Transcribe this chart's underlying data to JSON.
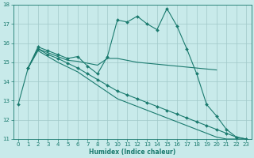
{
  "xlabel": "Humidex (Indice chaleur)",
  "bg_color": "#c8eaea",
  "grid_color": "#a0c8c8",
  "line_color": "#1a7a6e",
  "xlim": [
    -0.5,
    23.5
  ],
  "ylim": [
    11,
    18
  ],
  "yticks": [
    11,
    12,
    13,
    14,
    15,
    16,
    17,
    18
  ],
  "xticks": [
    0,
    1,
    2,
    3,
    4,
    5,
    6,
    7,
    8,
    9,
    10,
    11,
    12,
    13,
    14,
    15,
    16,
    17,
    18,
    19,
    20,
    21,
    22,
    23
  ],
  "curve1_x": [
    0,
    1,
    2,
    3,
    4,
    5,
    6,
    7,
    8,
    9,
    10,
    11,
    12,
    13,
    14,
    15,
    16,
    17,
    18,
    19,
    20,
    21,
    22,
    23
  ],
  "curve1_y": [
    12.8,
    14.7,
    15.8,
    15.6,
    15.4,
    15.2,
    15.3,
    14.8,
    14.4,
    15.3,
    17.2,
    17.1,
    17.4,
    17.0,
    16.7,
    17.8,
    16.9,
    15.7,
    14.4,
    12.8,
    12.2,
    11.5,
    11.1,
    11.0
  ],
  "curve2_x": [
    1,
    2,
    3,
    4,
    5,
    6,
    7,
    8,
    9,
    10,
    11,
    12,
    13,
    14,
    15,
    16,
    17,
    18,
    19,
    20
  ],
  "curve2_y": [
    14.7,
    15.7,
    15.5,
    15.3,
    15.1,
    15.05,
    14.95,
    14.85,
    15.2,
    15.2,
    15.1,
    15.0,
    14.95,
    14.9,
    14.85,
    14.8,
    14.75,
    14.7,
    14.65,
    14.6
  ],
  "curve3_x": [
    1,
    2,
    3,
    4,
    5,
    6,
    7,
    8,
    9,
    10,
    11,
    12,
    13,
    14,
    15,
    16,
    17,
    18,
    19,
    20,
    21,
    22,
    23
  ],
  "curve3_y": [
    14.7,
    15.7,
    15.4,
    15.2,
    14.95,
    14.7,
    14.4,
    14.1,
    13.8,
    13.5,
    13.3,
    13.1,
    12.9,
    12.7,
    12.5,
    12.3,
    12.1,
    11.9,
    11.7,
    11.5,
    11.3,
    11.1,
    11.0
  ],
  "curve4_x": [
    1,
    2,
    3,
    4,
    5,
    6,
    7,
    8,
    9,
    10,
    11,
    12,
    13,
    14,
    15,
    16,
    17,
    18,
    19,
    20,
    21,
    22,
    23
  ],
  "curve4_y": [
    14.7,
    15.6,
    15.3,
    15.0,
    14.75,
    14.5,
    14.15,
    13.8,
    13.45,
    13.1,
    12.9,
    12.7,
    12.5,
    12.3,
    12.1,
    11.9,
    11.7,
    11.5,
    11.3,
    11.1,
    11.0,
    11.0,
    11.0
  ]
}
